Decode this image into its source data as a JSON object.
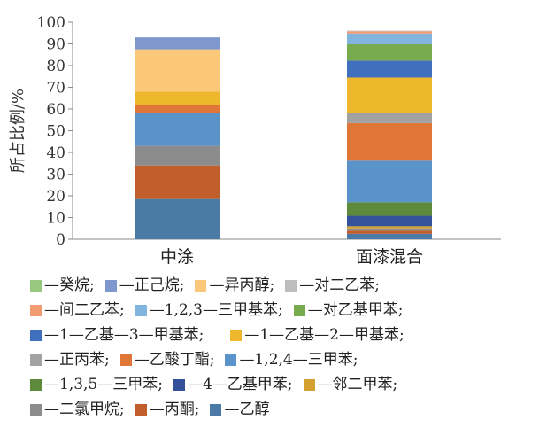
{
  "chart_data": {
    "type": "bar",
    "stacked": true,
    "categories": [
      "中涂",
      "面漆混合"
    ],
    "ylabel": "所占比例/%",
    "xlabel": "",
    "ylim": [
      0,
      100
    ],
    "yticks": [
      0,
      10,
      20,
      30,
      40,
      50,
      60,
      70,
      80,
      90,
      100
    ],
    "grid": false,
    "legend_position": "bottom",
    "series": [
      {
        "name": "乙醇",
        "color": "#4a7aa5",
        "values": [
          18.5,
          2.5
        ]
      },
      {
        "name": "丙酮",
        "color": "#c05e2c",
        "values": [
          15.5,
          1.5
        ]
      },
      {
        "name": "二氯甲烷",
        "color": "#8c8c8c",
        "values": [
          9.0,
          1.0
        ]
      },
      {
        "name": "邻二甲苯",
        "color": "#d4a02f",
        "values": [
          0,
          1.0
        ]
      },
      {
        "name": "4—乙基甲苯",
        "color": "#34529a",
        "values": [
          0,
          4.8
        ]
      },
      {
        "name": "1,3,5—三甲苯",
        "color": "#5e8a3b",
        "values": [
          0,
          6.2
        ]
      },
      {
        "name": "1,2,4—三甲苯",
        "color": "#5a93c9",
        "values": [
          15.0,
          19.2
        ]
      },
      {
        "name": "乙酸丁酯",
        "color": "#e07638",
        "values": [
          4.0,
          17.3
        ]
      },
      {
        "name": "正丙苯",
        "color": "#a2a2a2",
        "values": [
          0,
          4.5
        ]
      },
      {
        "name": "1—乙基—2—甲基苯",
        "color": "#edb82b",
        "values": [
          6.0,
          16.5
        ]
      },
      {
        "name": "1—乙基—3—甲基苯",
        "color": "#4070bd",
        "values": [
          0,
          7.8
        ]
      },
      {
        "name": "对乙基甲苯",
        "color": "#78aa4e",
        "values": [
          0,
          7.5
        ]
      },
      {
        "name": "1,2,3—三甲基苯",
        "color": "#82b4e0",
        "values": [
          0,
          5.0
        ]
      },
      {
        "name": "间二乙苯",
        "color": "#f29a72",
        "values": [
          0,
          1.0
        ]
      },
      {
        "name": "对二乙苯",
        "color": "#bdbdbd",
        "values": [
          0,
          0.3
        ]
      },
      {
        "name": "异丙醇",
        "color": "#fac878",
        "values": [
          19.5,
          0
        ]
      },
      {
        "name": "正己烷",
        "color": "#7e97cd",
        "values": [
          5.5,
          0
        ]
      },
      {
        "name": "癸烷",
        "color": "#98c880",
        "values": [
          0,
          0
        ]
      }
    ],
    "legend": {
      "rows": [
        [
          "癸烷",
          "正己烷",
          "异丙醇",
          "对二乙苯"
        ],
        [
          "间二乙苯",
          "1,2,3—三甲基苯",
          "对乙基甲苯"
        ],
        [
          "1—乙基—3—甲基苯",
          "1—乙基—2—甲基苯"
        ],
        [
          "正丙苯",
          "乙酸丁酯",
          "1,2,4—三甲苯"
        ],
        [
          "1,3,5—三甲苯",
          "4—乙基甲苯",
          "邻二甲苯"
        ],
        [
          "二氯甲烷",
          "丙酮",
          "乙醇"
        ]
      ],
      "labels": {
        "癸烷": "—癸烷;",
        "正己烷": "—正己烷;",
        "异丙醇": "—异丙醇;",
        "对二乙苯": "—对二乙苯;",
        "间二乙苯": "—间二乙苯;",
        "1,2,3—三甲基苯": "—1,2,3—三甲基苯;",
        "对乙基甲苯": "—对乙基甲苯;",
        "1—乙基—3—甲基苯": "—1—乙基—3—甲基苯;",
        "1—乙基—2—甲基苯": "—1—乙基—2—甲基苯;",
        "正丙苯": "—正丙苯;",
        "乙酸丁酯": "—乙酸丁酯;",
        "1,2,4—三甲苯": "—1,2,4—三甲苯;",
        "1,3,5—三甲苯": "—1,3,5—三甲苯;",
        "4—乙基甲苯": "—4—乙基甲苯;",
        "邻二甲苯": "—邻二甲苯;",
        "二氯甲烷": "—二氯甲烷;",
        "丙酮": "—丙酮;",
        "乙醇": "—乙醇"
      }
    }
  }
}
